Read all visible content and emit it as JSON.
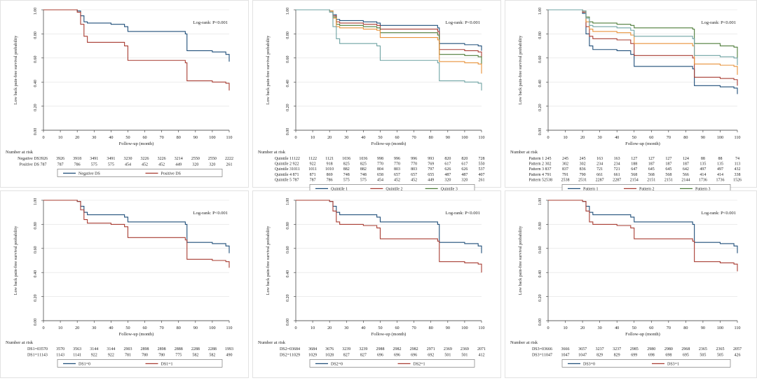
{
  "figure": {
    "colors": {
      "grid": "#e0e0e0",
      "axis": "#333333",
      "frame": "#e2e2e2",
      "blue": "#1f4e79",
      "red": "#a83c32",
      "green": "#4f7d3a",
      "orange": "#e8923a",
      "teal": "#6fa3a3"
    }
  },
  "chart_data": [
    {
      "type": "line",
      "title": "",
      "xlabel": "Follow-up (month)",
      "ylabel": "Low back pain-free survival probability",
      "annotation": "Log-rank: P<0.001",
      "xlim": [
        0,
        110
      ],
      "ylim": [
        0,
        1
      ],
      "xticks": [
        0,
        10,
        20,
        30,
        40,
        50,
        60,
        70,
        80,
        90,
        100,
        110
      ],
      "yticks": [
        "0.00",
        "0.20",
        "0.40",
        "0.60",
        "0.80",
        "1.00"
      ],
      "risk_title": "Number at risk",
      "series": [
        {
          "name": "Negative DS",
          "color": "#1f4e79",
          "x": [
            0,
            20,
            22,
            24,
            26,
            40,
            48,
            50,
            84,
            85,
            100,
            108,
            110
          ],
          "y": [
            1,
            0.99,
            0.95,
            0.9,
            0.89,
            0.88,
            0.86,
            0.82,
            0.8,
            0.66,
            0.65,
            0.63,
            0.57
          ],
          "risk": [
            3926,
            3926,
            3918,
            3491,
            3491,
            3230,
            3226,
            3226,
            3214,
            2550,
            2550,
            2222
          ]
        },
        {
          "name": "Positive DS",
          "color": "#a83c32",
          "x": [
            0,
            20,
            22,
            24,
            26,
            40,
            48,
            50,
            84,
            85,
            100,
            108,
            110
          ],
          "y": [
            1,
            0.98,
            0.88,
            0.78,
            0.73,
            0.73,
            0.7,
            0.58,
            0.56,
            0.41,
            0.4,
            0.39,
            0.33
          ],
          "risk": [
            787,
            787,
            786,
            575,
            575,
            454,
            452,
            452,
            449,
            320,
            320,
            261
          ]
        }
      ]
    },
    {
      "type": "line",
      "title": "",
      "xlabel": "Follow-up (month)",
      "ylabel": "Low back pain-free survival probability",
      "annotation": "Log-rank: P<0.001",
      "xlim": [
        0,
        110
      ],
      "ylim": [
        0,
        1
      ],
      "xticks": [
        0,
        10,
        20,
        30,
        40,
        50,
        60,
        70,
        80,
        90,
        100,
        110
      ],
      "yticks": [
        "0.00",
        "0.20",
        "0.40",
        "0.60",
        "0.80",
        "1.00"
      ],
      "risk_title": "Number at risk",
      "series": [
        {
          "name": "Quintile 1",
          "color": "#1f4e79",
          "x": [
            0,
            20,
            22,
            24,
            26,
            40,
            48,
            50,
            84,
            85,
            100,
            108,
            110
          ],
          "y": [
            1,
            0.99,
            0.96,
            0.92,
            0.91,
            0.9,
            0.89,
            0.87,
            0.85,
            0.72,
            0.71,
            0.7,
            0.66
          ],
          "risk": [
            1122,
            1122,
            1121,
            1036,
            1036,
            998,
            996,
            996,
            993,
            820,
            820,
            728
          ]
        },
        {
          "name": "Quintile 2",
          "color": "#a83c32",
          "x": [
            0,
            20,
            22,
            24,
            26,
            40,
            48,
            50,
            84,
            85,
            100,
            108,
            110
          ],
          "y": [
            1,
            0.99,
            0.95,
            0.9,
            0.89,
            0.88,
            0.87,
            0.84,
            0.82,
            0.67,
            0.66,
            0.65,
            0.6
          ],
          "risk": [
            922,
            922,
            918,
            825,
            825,
            770,
            770,
            770,
            769,
            617,
            617,
            550
          ]
        },
        {
          "name": "Quintile 3",
          "color": "#4f7d3a",
          "x": [
            0,
            20,
            22,
            24,
            26,
            40,
            48,
            50,
            84,
            85,
            100,
            108,
            110
          ],
          "y": [
            1,
            0.99,
            0.94,
            0.88,
            0.87,
            0.86,
            0.85,
            0.81,
            0.79,
            0.63,
            0.62,
            0.61,
            0.55
          ],
          "risk": [
            1011,
            1011,
            1010,
            882,
            882,
            804,
            803,
            803,
            797,
            626,
            626,
            537
          ]
        },
        {
          "name": "Quintile 4",
          "color": "#e8923a",
          "x": [
            0,
            20,
            22,
            24,
            26,
            40,
            48,
            50,
            84,
            85,
            100,
            108,
            110
          ],
          "y": [
            1,
            0.99,
            0.93,
            0.86,
            0.85,
            0.84,
            0.83,
            0.77,
            0.75,
            0.57,
            0.56,
            0.55,
            0.47
          ],
          "risk": [
            871,
            871,
            869,
            748,
            748,
            658,
            657,
            657,
            655,
            487,
            487,
            407
          ]
        },
        {
          "name": "Quintile 5",
          "color": "#6fa3a3",
          "x": [
            0,
            20,
            22,
            24,
            26,
            40,
            48,
            50,
            84,
            85,
            100,
            108,
            110
          ],
          "y": [
            1,
            0.98,
            0.86,
            0.76,
            0.72,
            0.72,
            0.7,
            0.58,
            0.56,
            0.41,
            0.4,
            0.39,
            0.33
          ],
          "risk": [
            787,
            787,
            786,
            575,
            575,
            454,
            452,
            452,
            449,
            320,
            320,
            261
          ]
        }
      ]
    },
    {
      "type": "line",
      "title": "",
      "xlabel": "Follow-up (month)",
      "ylabel": "Low back pain-free survival probability",
      "annotation": "Log-rank: P<0.001",
      "xlim": [
        0,
        110
      ],
      "ylim": [
        0,
        1
      ],
      "xticks": [
        0,
        10,
        20,
        30,
        40,
        50,
        60,
        70,
        80,
        90,
        100,
        110
      ],
      "yticks": [
        "0.00",
        "0.20",
        "0.40",
        "0.60",
        "0.80",
        "1.00"
      ],
      "risk_title": "Number at risk",
      "series": [
        {
          "name": "Pattern 1",
          "color": "#1f4e79",
          "x": [
            0,
            20,
            22,
            24,
            26,
            40,
            48,
            50,
            84,
            85,
            100,
            108,
            110
          ],
          "y": [
            1,
            0.97,
            0.8,
            0.7,
            0.67,
            0.66,
            0.63,
            0.53,
            0.51,
            0.37,
            0.36,
            0.35,
            0.3
          ],
          "risk": [
            245,
            245,
            245,
            163,
            163,
            127,
            127,
            127,
            124,
            88,
            88,
            74
          ]
        },
        {
          "name": "Pattern 2",
          "color": "#a83c32",
          "x": [
            0,
            20,
            22,
            24,
            26,
            40,
            48,
            50,
            84,
            85,
            100,
            108,
            110
          ],
          "y": [
            1,
            0.98,
            0.86,
            0.78,
            0.76,
            0.75,
            0.72,
            0.62,
            0.6,
            0.44,
            0.43,
            0.42,
            0.37
          ],
          "risk": [
            302,
            302,
            302,
            234,
            234,
            188,
            187,
            187,
            187,
            135,
            135,
            113
          ]
        },
        {
          "name": "Pattern 3",
          "color": "#4f7d3a",
          "x": [
            0,
            20,
            22,
            24,
            26,
            40,
            48,
            50,
            84,
            85,
            100,
            108,
            110
          ],
          "y": [
            1,
            0.99,
            0.94,
            0.9,
            0.89,
            0.88,
            0.87,
            0.85,
            0.84,
            0.72,
            0.7,
            0.69,
            0.6
          ],
          "risk": [
            837,
            837,
            836,
            721,
            721,
            647,
            645,
            645,
            642,
            497,
            497,
            432
          ]
        },
        {
          "name": "Pattern 4",
          "color": "#e8923a",
          "x": [
            0,
            20,
            22,
            24,
            26,
            40,
            48,
            50,
            84,
            85,
            100,
            108,
            110
          ],
          "y": [
            1,
            0.99,
            0.9,
            0.84,
            0.82,
            0.81,
            0.79,
            0.72,
            0.7,
            0.55,
            0.54,
            0.53,
            0.46
          ],
          "risk": [
            791,
            791,
            790,
            661,
            661,
            568,
            568,
            568,
            566,
            414,
            414,
            338
          ]
        },
        {
          "name": "Pattern 5",
          "color": "#6fa3a3",
          "x": [
            0,
            20,
            22,
            24,
            26,
            40,
            48,
            50,
            84,
            85,
            100,
            108,
            110
          ],
          "y": [
            1,
            0.99,
            0.93,
            0.87,
            0.86,
            0.85,
            0.83,
            0.78,
            0.76,
            0.62,
            0.61,
            0.6,
            0.54
          ],
          "risk": [
            2538,
            2538,
            2531,
            2287,
            2287,
            2154,
            2151,
            2151,
            2144,
            1736,
            1736,
            1526
          ]
        }
      ]
    },
    {
      "type": "line",
      "title": "",
      "xlabel": "Follow-up (month)",
      "ylabel": "Low back pain-free survival probability",
      "annotation": "Log-rank: P<0.001",
      "xlim": [
        0,
        110
      ],
      "ylim": [
        0,
        1
      ],
      "xticks": [
        0,
        10,
        20,
        30,
        40,
        50,
        60,
        70,
        80,
        90,
        100,
        110
      ],
      "yticks": [
        "0.00",
        "0.20",
        "0.40",
        "0.60",
        "0.80",
        "1.00"
      ],
      "risk_title": "Number at risk",
      "series": [
        {
          "name": "DS1=0",
          "color": "#1f4e79",
          "x": [
            0,
            20,
            22,
            24,
            26,
            40,
            48,
            50,
            84,
            85,
            100,
            108,
            110
          ],
          "y": [
            1,
            0.99,
            0.95,
            0.9,
            0.88,
            0.88,
            0.86,
            0.82,
            0.8,
            0.65,
            0.64,
            0.62,
            0.56
          ],
          "risk": [
            3570,
            3570,
            3563,
            3144,
            3144,
            2903,
            2898,
            2898,
            2888,
            2288,
            2288,
            1993
          ]
        },
        {
          "name": "DS1=1",
          "color": "#a83c32",
          "x": [
            0,
            20,
            22,
            24,
            26,
            40,
            48,
            50,
            84,
            85,
            100,
            108,
            110
          ],
          "y": [
            1,
            0.99,
            0.92,
            0.84,
            0.81,
            0.8,
            0.78,
            0.69,
            0.67,
            0.51,
            0.5,
            0.49,
            0.44
          ],
          "risk": [
            1143,
            1143,
            1141,
            922,
            922,
            781,
            780,
            780,
            775,
            582,
            582,
            490
          ]
        }
      ]
    },
    {
      "type": "line",
      "title": "",
      "xlabel": "Follow-up (month)",
      "ylabel": "Low back pain-free survival probability",
      "annotation": "Log-rank: P<0.001",
      "xlim": [
        0,
        110
      ],
      "ylim": [
        0,
        1
      ],
      "xticks": [
        0,
        10,
        20,
        30,
        40,
        50,
        60,
        70,
        80,
        90,
        100,
        110
      ],
      "yticks": [
        "0.00",
        "0.20",
        "0.40",
        "0.60",
        "0.80",
        "1.00"
      ],
      "risk_title": "Number at risk",
      "series": [
        {
          "name": "DS2=0",
          "color": "#1f4e79",
          "x": [
            0,
            20,
            22,
            24,
            26,
            40,
            48,
            50,
            84,
            85,
            100,
            108,
            110
          ],
          "y": [
            1,
            0.99,
            0.95,
            0.9,
            0.88,
            0.88,
            0.86,
            0.82,
            0.8,
            0.65,
            0.64,
            0.62,
            0.56
          ],
          "risk": [
            3684,
            3684,
            3676,
            3239,
            3239,
            2988,
            2982,
            2982,
            2971,
            2369,
            2369,
            2071
          ]
        },
        {
          "name": "DS2=1",
          "color": "#a83c32",
          "x": [
            0,
            20,
            22,
            24,
            26,
            40,
            48,
            50,
            84,
            85,
            100,
            108,
            110
          ],
          "y": [
            1,
            0.99,
            0.91,
            0.82,
            0.8,
            0.79,
            0.77,
            0.68,
            0.66,
            0.49,
            0.48,
            0.47,
            0.4
          ],
          "risk": [
            1029,
            1029,
            1028,
            827,
            827,
            696,
            696,
            696,
            692,
            501,
            501,
            412
          ]
        }
      ]
    },
    {
      "type": "line",
      "title": "",
      "xlabel": "Follow-up (month)",
      "ylabel": "Low back pain-free survival probability",
      "annotation": "Log-rank: P<0.001",
      "xlim": [
        0,
        110
      ],
      "ylim": [
        0,
        1
      ],
      "xticks": [
        0,
        10,
        20,
        30,
        40,
        50,
        60,
        70,
        80,
        90,
        100,
        110
      ],
      "yticks": [
        "0.00",
        "0.20",
        "0.40",
        "0.60",
        "0.80",
        "1.00"
      ],
      "risk_title": "Number at risk",
      "series": [
        {
          "name": "DS3=0",
          "color": "#1f4e79",
          "x": [
            0,
            20,
            22,
            24,
            26,
            40,
            48,
            50,
            84,
            85,
            100,
            108,
            110
          ],
          "y": [
            1,
            0.99,
            0.95,
            0.9,
            0.88,
            0.88,
            0.86,
            0.82,
            0.8,
            0.65,
            0.64,
            0.62,
            0.56
          ],
          "risk": [
            3666,
            3666,
            3657,
            3237,
            3237,
            2985,
            2980,
            2980,
            2968,
            2365,
            2365,
            2057
          ]
        },
        {
          "name": "DS3=1",
          "color": "#a83c32",
          "x": [
            0,
            20,
            22,
            24,
            26,
            40,
            48,
            50,
            84,
            85,
            100,
            108,
            110
          ],
          "y": [
            1,
            0.99,
            0.91,
            0.82,
            0.8,
            0.79,
            0.77,
            0.68,
            0.66,
            0.49,
            0.48,
            0.47,
            0.41
          ],
          "risk": [
            1047,
            1047,
            1047,
            829,
            829,
            699,
            698,
            698,
            695,
            505,
            505,
            426
          ]
        }
      ]
    }
  ]
}
